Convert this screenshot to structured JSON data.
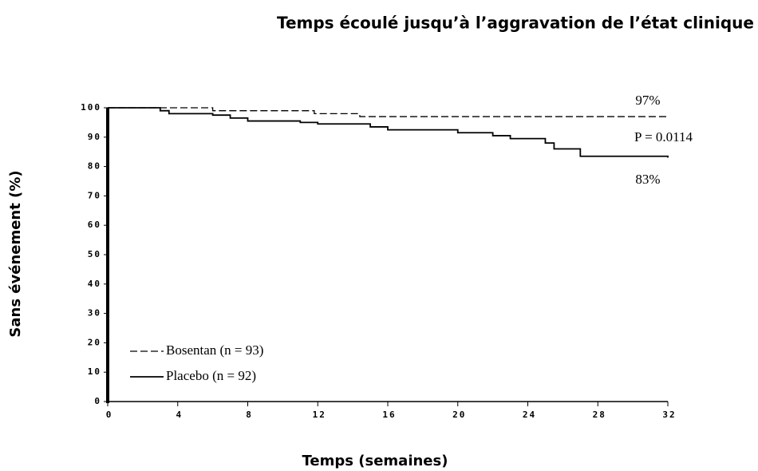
{
  "chart_data": {
    "type": "line",
    "step": "post",
    "title": "Temps écoulé jusqu’à l’aggravation de l’état clinique",
    "x_label": "Temps (semaines)",
    "y_label": "Sans événement (%)",
    "xlim": [
      0,
      32
    ],
    "xticks": [
      0,
      4,
      8,
      12,
      16,
      20,
      24,
      28,
      32
    ],
    "ylim": [
      0,
      100
    ],
    "yticks": [
      0,
      10,
      20,
      30,
      40,
      50,
      60,
      70,
      80,
      90,
      100
    ],
    "series": [
      {
        "name": "Bosentan (n = 93)",
        "color": "#000000",
        "dashed": true,
        "x": [
          0,
          6,
          11.8,
          14.4,
          32
        ],
        "values": [
          100,
          99,
          98,
          97,
          97
        ]
      },
      {
        "name": "Placebo (n = 92)",
        "color": "#000000",
        "dashed": false,
        "x": [
          0,
          3,
          3.5,
          6,
          7,
          8,
          11,
          12,
          15,
          16,
          20,
          22,
          23,
          25,
          25.5,
          27,
          32
        ],
        "values": [
          100,
          99,
          98,
          97.5,
          96.5,
          95.5,
          95,
          94.5,
          93.5,
          92.5,
          91.5,
          90.5,
          89.5,
          88,
          86,
          83.5,
          83
        ]
      }
    ],
    "annotations": [
      "97%",
      "P =  0.0114",
      "83%"
    ],
    "legend": "lower left"
  }
}
